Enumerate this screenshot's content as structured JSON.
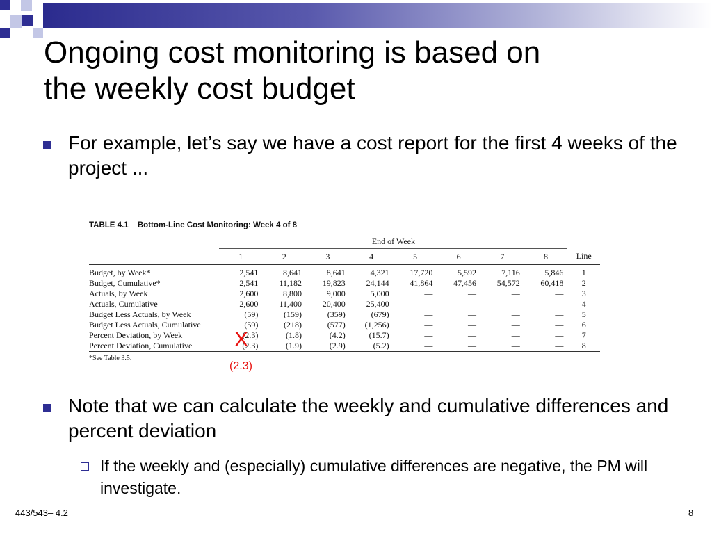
{
  "slide": {
    "title_line1": "Ongoing cost monitoring is based on",
    "title_line2": "the weekly cost budget",
    "bullet1": "For example, let’s say we have a cost report for the first 4 weeks of the project ...",
    "bullet2": "Note that we can calculate the weekly and cumulative differences and percent deviation",
    "sub_bullet": "If the weekly and (especially) cumulative differences are negative, the PM will investigate.",
    "footer_left": "443/543– 4.2",
    "page_number": "8",
    "accent_color": "#2e2e93"
  },
  "table": {
    "caption_tag": "TABLE 4.1",
    "caption": "Bottom-Line Cost Monitoring: Week 4 of 8",
    "group_header": "End of Week",
    "line_header": "Line",
    "weeks": [
      "1",
      "2",
      "3",
      "4",
      "5",
      "6",
      "7",
      "8"
    ],
    "rows": [
      {
        "label": "Budget, by Week*",
        "values": [
          "2,541",
          "8,641",
          "8,641",
          "4,321",
          "17,720",
          "5,592",
          "7,116",
          "5,846"
        ],
        "line": "1"
      },
      {
        "label": "Budget, Cumulative*",
        "values": [
          "2,541",
          "11,182",
          "19,823",
          "24,144",
          "41,864",
          "47,456",
          "54,572",
          "60,418"
        ],
        "line": "2"
      },
      {
        "label": "Actuals, by Week",
        "values": [
          "2,600",
          "8,800",
          "9,000",
          "5,000",
          "—",
          "—",
          "—",
          "—"
        ],
        "line": "3"
      },
      {
        "label": "Actuals, Cumulative",
        "values": [
          "2,600",
          "11,400",
          "20,400",
          "25,400",
          "—",
          "—",
          "—",
          "—"
        ],
        "line": "4"
      },
      {
        "label": "Budget Less Actuals, by Week",
        "values": [
          "(59)",
          "(159)",
          "(359)",
          "(679)",
          "—",
          "—",
          "—",
          "—"
        ],
        "line": "5"
      },
      {
        "label": "Budget Less Actuals, Cumulative",
        "values": [
          "(59)",
          "(218)",
          "(577)",
          "(1,256)",
          "—",
          "—",
          "—",
          "—"
        ],
        "line": "6"
      },
      {
        "label": "Percent Deviation, by Week",
        "values": [
          "(2.3)",
          "(1.8)",
          "(4.2)",
          "(15.7)",
          "—",
          "—",
          "—",
          "—"
        ],
        "line": "7"
      },
      {
        "label": "Percent Deviation, Cumulative",
        "values": [
          "(2.3)",
          "(1.9)",
          "(2.9)",
          "(5.2)",
          "—",
          "—",
          "—",
          "—"
        ],
        "line": "8"
      }
    ],
    "footnote": "*See Table 3.5."
  },
  "annotation": {
    "mark": "X",
    "value": "(2.3)",
    "color": "#e8110f"
  }
}
